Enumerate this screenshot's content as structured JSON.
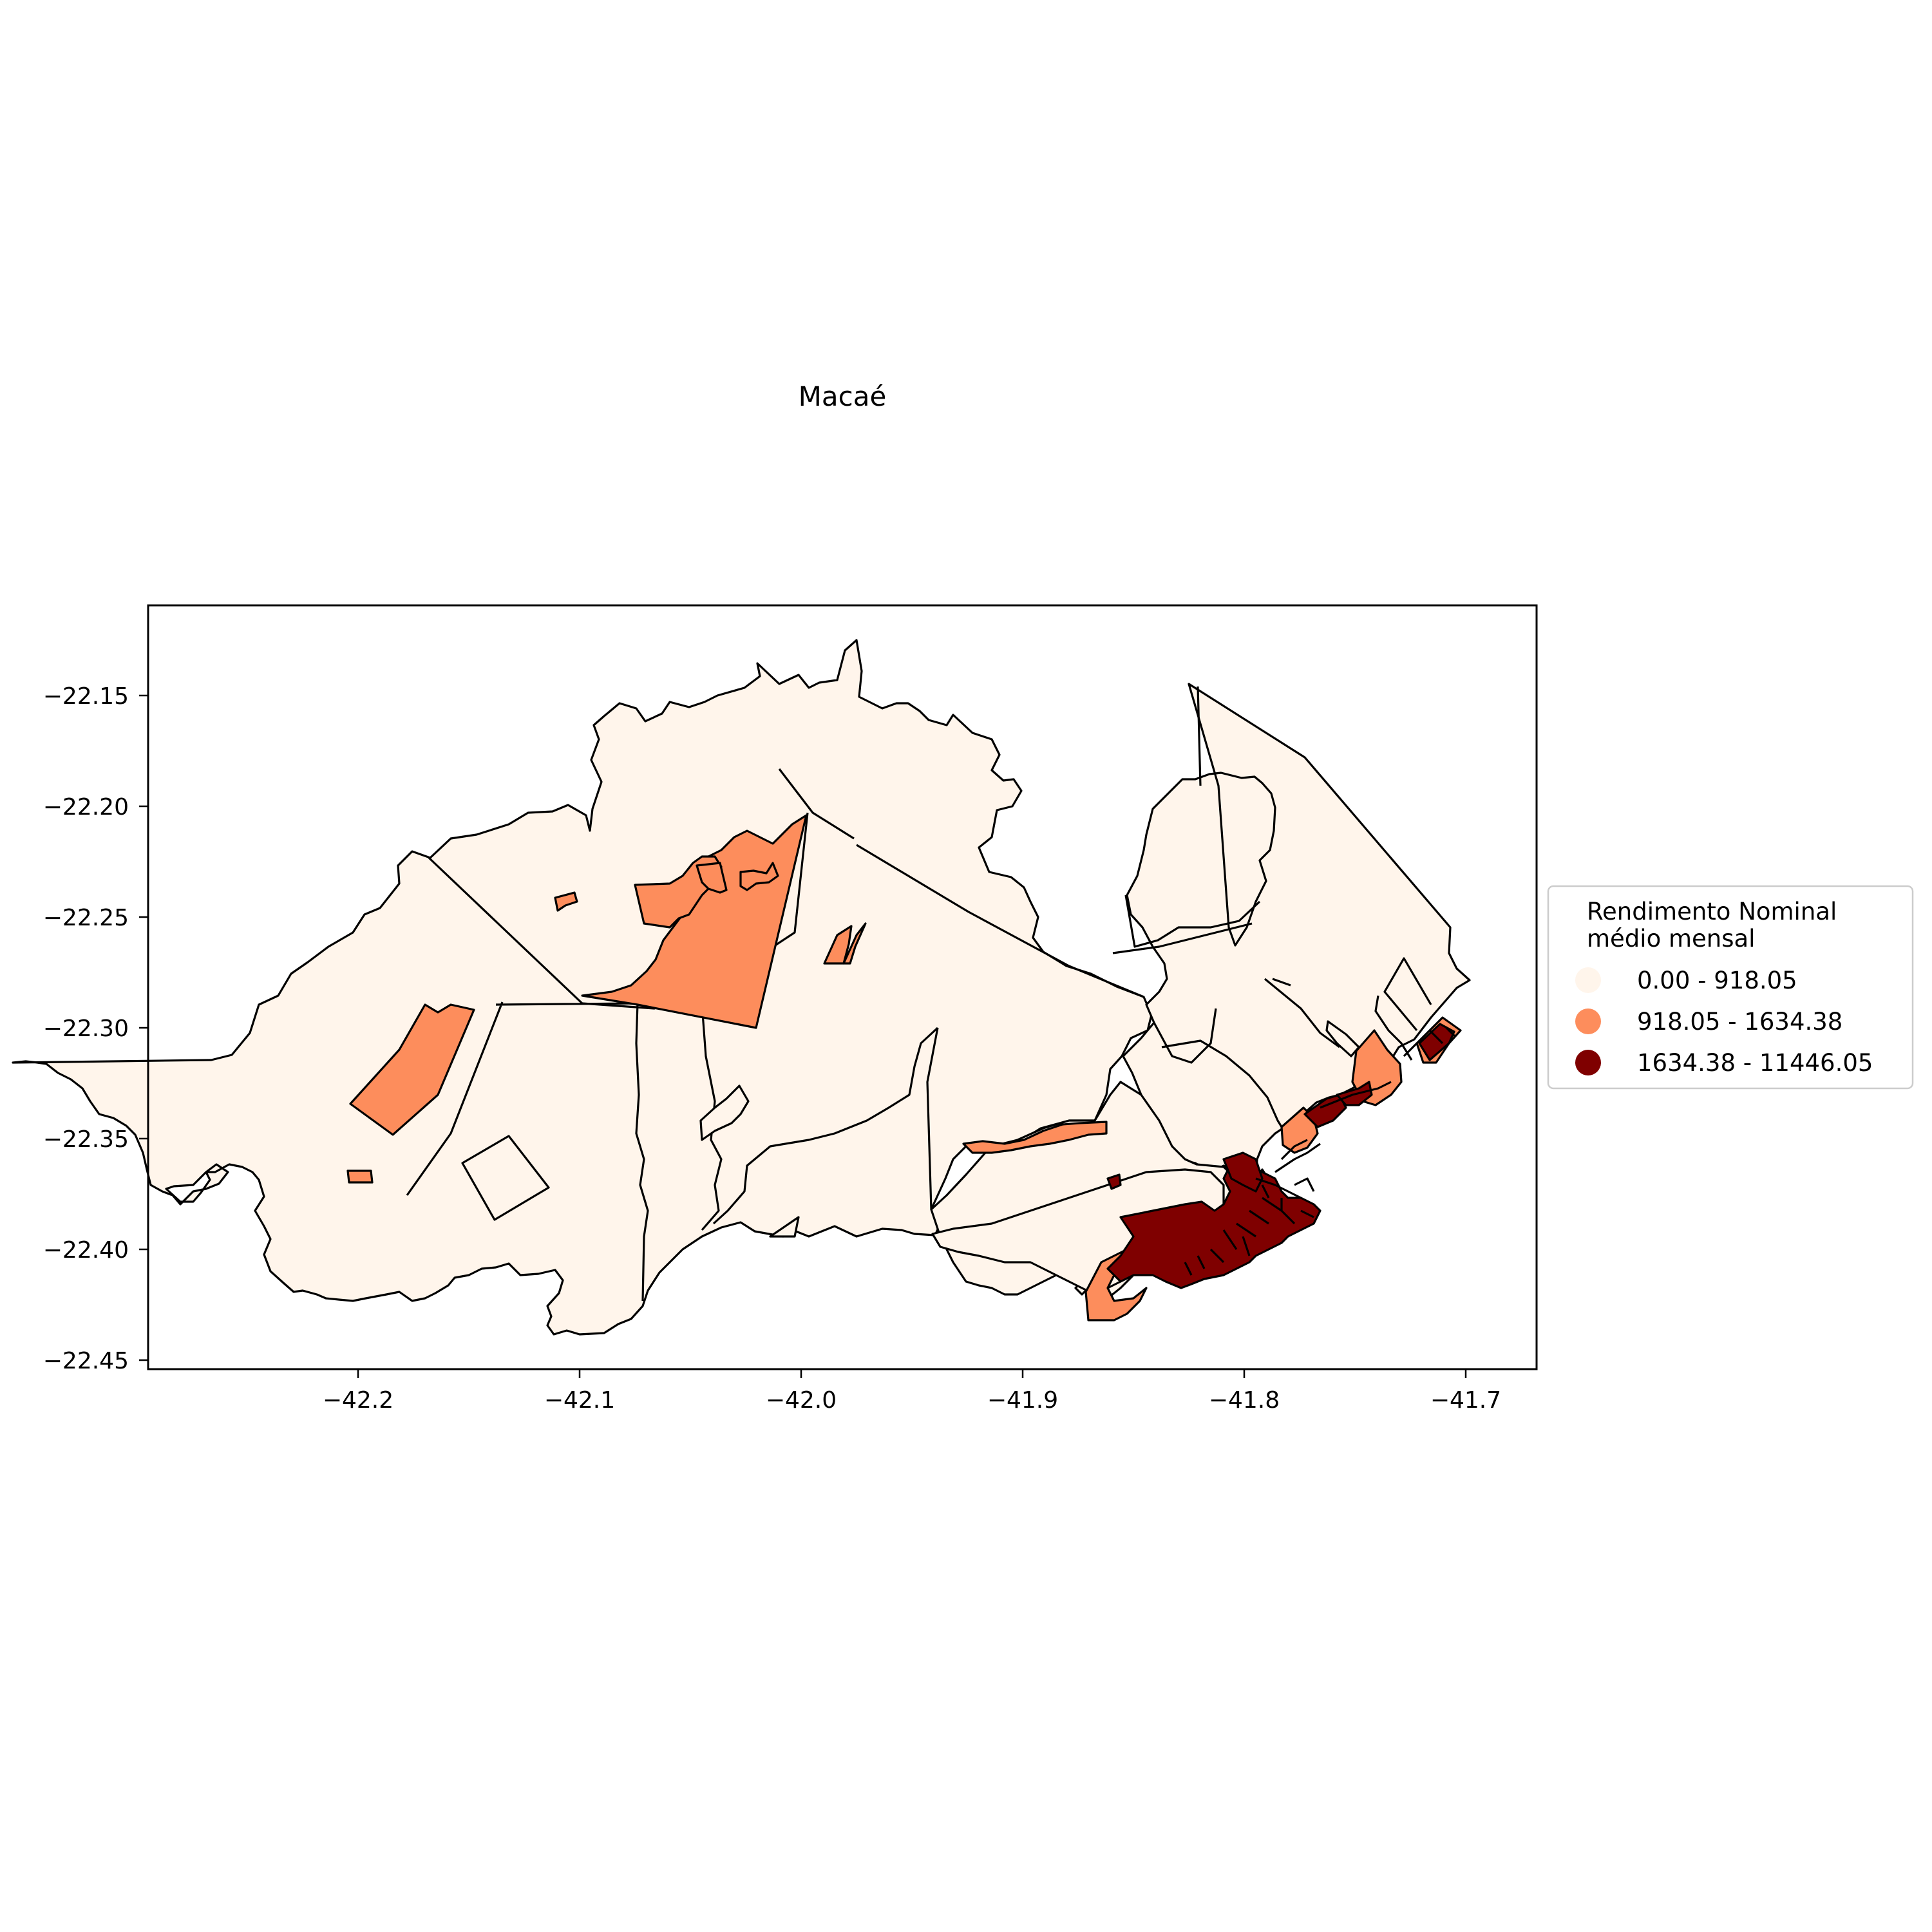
{
  "title": "Macaé",
  "map": {
    "xticks": [
      "−42.2",
      "−42.1",
      "−42.0",
      "−41.9",
      "−41.8",
      "−41.7"
    ],
    "yticks": [
      "−22.15",
      "−22.20",
      "−22.25",
      "−22.30",
      "−22.35",
      "−22.40",
      "−22.45"
    ]
  },
  "legend": {
    "title_line1": "Rendimento Nominal",
    "title_line2": "médio mensal",
    "items": [
      {
        "label": "0.00 - 918.05",
        "color": "#fff5eb"
      },
      {
        "label": "918.05 - 1634.38",
        "color": "#fd8d5c"
      },
      {
        "label": "1634.38 - 11446.05",
        "color": "#7f0000"
      }
    ]
  },
  "colors": {
    "low": "#fff5eb",
    "mid": "#fd8d5c",
    "high": "#7f0000"
  }
}
